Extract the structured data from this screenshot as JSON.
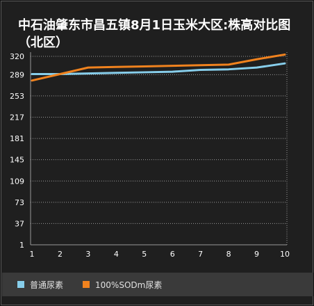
{
  "title": "中石油肇东市昌五镇8月1日玉米大区:株高对比图（北区）",
  "colors": {
    "background": "#1f1f1f",
    "grid": "#9a9a9a",
    "axis_text": "#ffffff",
    "series_1": "#87ceeb",
    "series_2": "#f0821e",
    "legend_bg": "#3a3a3a"
  },
  "chart_data": {
    "type": "line",
    "title": "中石油肇东市昌五镇8月1日玉米大区:株高对比图（北区）",
    "x": [
      1,
      2,
      3,
      4,
      5,
      6,
      7,
      8,
      9,
      10
    ],
    "x_tick_labels": [
      "1",
      "2",
      "3",
      "4",
      "5",
      "6",
      "7",
      "8",
      "9",
      "10"
    ],
    "y_tick_labels": [
      "1",
      "37",
      "73",
      "109",
      "145",
      "181",
      "217",
      "253",
      "289",
      "320"
    ],
    "ylim": [
      1,
      320
    ],
    "grid": true,
    "legend_position": "bottom",
    "series": [
      {
        "name": "普通尿素",
        "values": [
          290,
          290,
          291,
          292,
          293,
          294,
          297,
          298,
          301,
          308
        ]
      },
      {
        "name": "100%SODm尿素",
        "values": [
          279,
          290,
          301,
          302,
          303,
          304,
          305,
          306,
          315,
          323
        ]
      }
    ]
  }
}
